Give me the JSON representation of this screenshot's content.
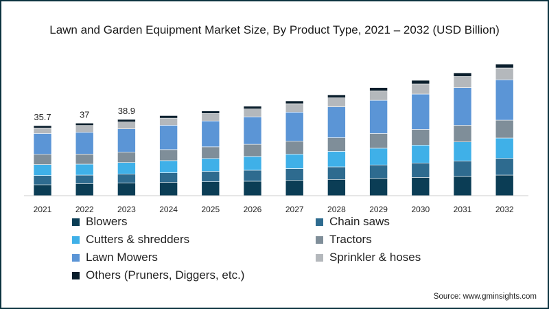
{
  "title": "Lawn and Garden Equipment Market Size, By Product Type, 2021 – 2032 (USD Billion)",
  "source": "Source: www.gminsights.com",
  "chart_data": {
    "type": "bar",
    "stacked": true,
    "title": "Lawn and Garden Equipment Market Size, By Product Type, 2021 – 2032 (USD Billion)",
    "xlabel": "",
    "ylabel": "",
    "ylim": [
      0,
      70
    ],
    "grid": false,
    "legend_position": "bottom",
    "categories": [
      "2021",
      "2022",
      "2023",
      "2024",
      "2025",
      "2026",
      "2027",
      "2028",
      "2029",
      "2030",
      "2031",
      "2032"
    ],
    "totals": [
      35.7,
      37,
      38.9,
      40.8,
      43.2,
      45.6,
      48.3,
      51.4,
      55.1,
      58.8,
      62.6,
      67.1
    ],
    "total_labels": [
      "35.7",
      "37",
      "38.9",
      "",
      "",
      "",
      "",
      "",
      "",
      "",
      "",
      ""
    ],
    "series": [
      {
        "name": "Blowers",
        "color": "#0b3d55",
        "values": [
          5.6,
          6.2,
          6.5,
          6.8,
          7.1,
          7.4,
          7.8,
          8.3,
          8.8,
          9.3,
          9.8,
          10.5
        ]
      },
      {
        "name": "Chain saws",
        "color": "#2e6b8f",
        "values": [
          4.7,
          4.3,
          4.6,
          4.9,
          5.3,
          5.6,
          6.0,
          6.4,
          6.9,
          7.4,
          7.9,
          8.5
        ]
      },
      {
        "name": "Cutters & shredders",
        "color": "#3fb0e8",
        "values": [
          5.6,
          5.6,
          5.8,
          6.2,
          6.6,
          7.0,
          7.4,
          7.9,
          8.5,
          9.1,
          9.7,
          10.4
        ]
      },
      {
        "name": "Tractors",
        "color": "#7f8e99",
        "values": [
          5.2,
          5.1,
          5.3,
          5.6,
          5.9,
          6.2,
          6.6,
          7.0,
          7.5,
          8.0,
          8.5,
          9.1
        ]
      },
      {
        "name": "Lawn Mowers",
        "color": "#5b95d6",
        "values": [
          10.6,
          11.1,
          11.9,
          12.4,
          13.2,
          14.0,
          14.8,
          15.7,
          16.9,
          18.0,
          19.2,
          20.6
        ]
      },
      {
        "name": "Sprinkler & hoses",
        "color": "#b4b8bc",
        "values": [
          2.8,
          3.5,
          3.5,
          3.6,
          3.8,
          4.0,
          4.3,
          4.6,
          4.9,
          5.2,
          5.6,
          6.0
        ]
      },
      {
        "name": "Others (Pruners, Diggers, etc.)",
        "color": "#0a1e2c",
        "values": [
          1.2,
          1.2,
          1.3,
          1.3,
          1.3,
          1.4,
          1.4,
          1.5,
          1.6,
          1.8,
          1.9,
          2.0
        ]
      }
    ]
  }
}
